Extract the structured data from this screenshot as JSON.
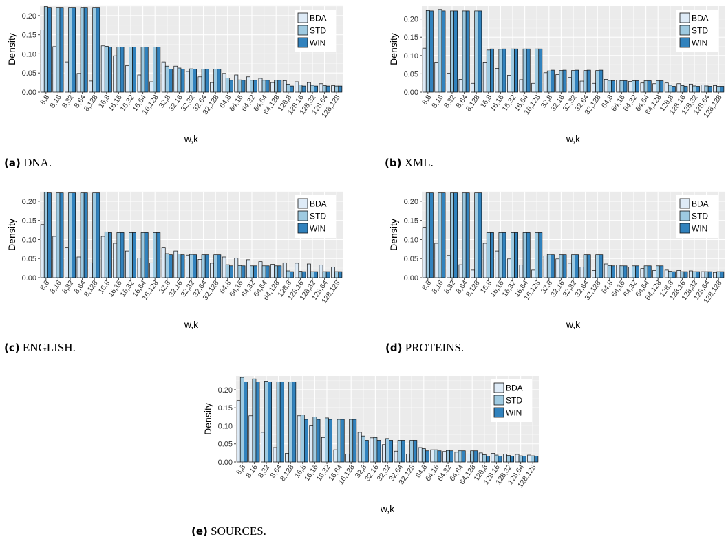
{
  "legend_items": [
    "BDA",
    "STD",
    "WIN"
  ],
  "colors": {
    "BDA": "#deebf7",
    "STD": "#9ecae1",
    "WIN": "#3182bd",
    "panel_bg": "#ebebeb",
    "grid": "#ffffff"
  },
  "chart_data": [
    {
      "type": "bar",
      "caption_label": "(a)",
      "caption_text": "DNA.",
      "xlabel": "w,k",
      "ylabel": "Density",
      "ylim": [
        0,
        0.225
      ],
      "yticks": [
        "0.00",
        "0.05",
        "0.10",
        "0.15",
        "0.20"
      ],
      "categories": [
        "8,8",
        "8,16",
        "8,32",
        "8,64",
        "8,128",
        "16,8",
        "16,16",
        "16,32",
        "16,64",
        "16,128",
        "32,8",
        "32,16",
        "32,32",
        "32,64",
        "32,128",
        "64,8",
        "64,16",
        "64,32",
        "64,64",
        "64,128",
        "128,8",
        "128,16",
        "128,32",
        "128,64",
        "128,128"
      ],
      "series": [
        {
          "name": "BDA",
          "values": [
            0.163,
            0.119,
            0.079,
            0.049,
            0.029,
            0.121,
            0.095,
            0.069,
            0.045,
            0.027,
            0.079,
            0.068,
            0.054,
            0.04,
            0.025,
            0.049,
            0.045,
            0.04,
            0.036,
            0.025,
            0.03,
            0.027,
            0.025,
            0.022,
            0.017
          ]
        },
        {
          "name": "STD",
          "values": [
            0.224,
            0.222,
            0.222,
            0.222,
            0.222,
            0.12,
            0.118,
            0.118,
            0.118,
            0.118,
            0.068,
            0.063,
            0.061,
            0.06,
            0.06,
            0.037,
            0.032,
            0.031,
            0.031,
            0.031,
            0.021,
            0.019,
            0.018,
            0.017,
            0.016
          ]
        },
        {
          "name": "WIN",
          "values": [
            0.222,
            0.222,
            0.222,
            0.222,
            0.222,
            0.118,
            0.118,
            0.118,
            0.118,
            0.118,
            0.06,
            0.06,
            0.06,
            0.06,
            0.06,
            0.031,
            0.031,
            0.031,
            0.031,
            0.031,
            0.016,
            0.016,
            0.016,
            0.016,
            0.016
          ]
        }
      ]
    },
    {
      "type": "bar",
      "caption_label": "(b)",
      "caption_text": "XML.",
      "xlabel": "w,k",
      "ylabel": "Density",
      "ylim": [
        0,
        0.235
      ],
      "yticks": [
        "0.00",
        "0.05",
        "0.10",
        "0.15",
        "0.20"
      ],
      "categories": [
        "8,8",
        "8,16",
        "8,32",
        "8,64",
        "8,128",
        "16,8",
        "16,16",
        "16,32",
        "16,64",
        "16,128",
        "32,8",
        "32,16",
        "32,32",
        "32,64",
        "32,128",
        "64,8",
        "64,16",
        "64,32",
        "64,64",
        "64,128",
        "128,8",
        "128,16",
        "128,32",
        "128,64",
        "128,128"
      ],
      "series": [
        {
          "name": "BDA",
          "values": [
            0.12,
            0.082,
            0.052,
            0.035,
            0.024,
            0.082,
            0.065,
            0.046,
            0.034,
            0.024,
            0.053,
            0.048,
            0.04,
            0.03,
            0.024,
            0.035,
            0.033,
            0.029,
            0.025,
            0.023,
            0.025,
            0.023,
            0.022,
            0.02,
            0.018
          ]
        },
        {
          "name": "STD",
          "values": [
            0.223,
            0.226,
            0.222,
            0.222,
            0.222,
            0.115,
            0.117,
            0.118,
            0.118,
            0.118,
            0.058,
            0.059,
            0.059,
            0.059,
            0.059,
            0.032,
            0.031,
            0.031,
            0.031,
            0.031,
            0.019,
            0.018,
            0.017,
            0.017,
            0.016
          ]
        },
        {
          "name": "WIN",
          "values": [
            0.222,
            0.222,
            0.222,
            0.222,
            0.222,
            0.118,
            0.118,
            0.118,
            0.118,
            0.118,
            0.06,
            0.06,
            0.06,
            0.06,
            0.06,
            0.031,
            0.031,
            0.031,
            0.031,
            0.031,
            0.016,
            0.016,
            0.016,
            0.016,
            0.016
          ]
        }
      ]
    },
    {
      "type": "bar",
      "caption_label": "(c)",
      "caption_text": "ENGLISH.",
      "xlabel": "w,k",
      "ylabel": "Density",
      "ylim": [
        0,
        0.225
      ],
      "yticks": [
        "0.00",
        "0.05",
        "0.10",
        "0.15",
        "0.20"
      ],
      "categories": [
        "8,8",
        "8,16",
        "8,32",
        "8,64",
        "8,128",
        "16,8",
        "16,16",
        "16,32",
        "16,64",
        "16,128",
        "32,8",
        "32,16",
        "32,32",
        "32,64",
        "32,128",
        "64,8",
        "64,16",
        "64,32",
        "64,64",
        "64,128",
        "128,8",
        "128,16",
        "128,32",
        "128,64",
        "128,128"
      ],
      "series": [
        {
          "name": "BDA",
          "values": [
            0.139,
            0.108,
            0.078,
            0.054,
            0.039,
            0.108,
            0.09,
            0.07,
            0.051,
            0.039,
            0.078,
            0.07,
            0.059,
            0.048,
            0.038,
            0.054,
            0.051,
            0.047,
            0.042,
            0.035,
            0.039,
            0.038,
            0.036,
            0.033,
            0.028
          ]
        },
        {
          "name": "STD",
          "values": [
            0.224,
            0.222,
            0.222,
            0.222,
            0.222,
            0.12,
            0.118,
            0.118,
            0.118,
            0.118,
            0.063,
            0.062,
            0.061,
            0.06,
            0.06,
            0.034,
            0.032,
            0.031,
            0.031,
            0.031,
            0.018,
            0.017,
            0.016,
            0.016,
            0.016
          ]
        },
        {
          "name": "WIN",
          "values": [
            0.222,
            0.222,
            0.222,
            0.222,
            0.222,
            0.118,
            0.118,
            0.118,
            0.118,
            0.118,
            0.06,
            0.06,
            0.06,
            0.06,
            0.06,
            0.031,
            0.031,
            0.031,
            0.031,
            0.031,
            0.016,
            0.016,
            0.016,
            0.016,
            0.016
          ]
        }
      ]
    },
    {
      "type": "bar",
      "caption_label": "(d)",
      "caption_text": "PROTEINS.",
      "xlabel": "w,k",
      "ylabel": "Density",
      "ylim": [
        0,
        0.225
      ],
      "yticks": [
        "0.00",
        "0.05",
        "0.10",
        "0.15",
        "0.20"
      ],
      "categories": [
        "8,8",
        "8,16",
        "8,32",
        "8,64",
        "8,128",
        "16,8",
        "16,16",
        "16,32",
        "16,64",
        "16,128",
        "32,8",
        "32,16",
        "32,32",
        "32,64",
        "32,128",
        "64,8",
        "64,16",
        "64,32",
        "64,64",
        "64,128",
        "128,8",
        "128,16",
        "128,32",
        "128,64",
        "128,128"
      ],
      "series": [
        {
          "name": "BDA",
          "values": [
            0.132,
            0.09,
            0.058,
            0.034,
            0.02,
            0.09,
            0.07,
            0.049,
            0.033,
            0.02,
            0.057,
            0.049,
            0.038,
            0.028,
            0.019,
            0.036,
            0.033,
            0.028,
            0.024,
            0.019,
            0.02,
            0.019,
            0.018,
            0.016,
            0.014
          ]
        },
        {
          "name": "STD",
          "values": [
            0.222,
            0.222,
            0.222,
            0.222,
            0.222,
            0.118,
            0.118,
            0.118,
            0.118,
            0.118,
            0.061,
            0.06,
            0.06,
            0.06,
            0.06,
            0.032,
            0.031,
            0.031,
            0.031,
            0.031,
            0.017,
            0.016,
            0.016,
            0.016,
            0.016
          ]
        },
        {
          "name": "WIN",
          "values": [
            0.222,
            0.222,
            0.222,
            0.222,
            0.222,
            0.118,
            0.118,
            0.118,
            0.118,
            0.118,
            0.06,
            0.06,
            0.06,
            0.06,
            0.06,
            0.031,
            0.031,
            0.031,
            0.031,
            0.031,
            0.016,
            0.016,
            0.016,
            0.016,
            0.016
          ]
        }
      ]
    },
    {
      "type": "bar",
      "caption_label": "(e)",
      "caption_text": "SOURCES.",
      "xlabel": "w,k",
      "ylabel": "Density",
      "ylim": [
        0,
        0.238
      ],
      "yticks": [
        "0.00",
        "0.05",
        "0.10",
        "0.15",
        "0.20"
      ],
      "categories": [
        "8,8",
        "8,16",
        "8,32",
        "8,64",
        "8,128",
        "16,8",
        "16,16",
        "16,32",
        "16,64",
        "16,128",
        "32,8",
        "32,16",
        "32,32",
        "32,64",
        "32,128",
        "64,8",
        "64,16",
        "64,32",
        "64,64",
        "64,128",
        "128,8",
        "128,16",
        "128,32",
        "128,64",
        "128,128"
      ],
      "series": [
        {
          "name": "BDA",
          "values": [
            0.17,
            0.128,
            0.082,
            0.04,
            0.024,
            0.128,
            0.102,
            0.068,
            0.034,
            0.022,
            0.082,
            0.067,
            0.048,
            0.03,
            0.022,
            0.04,
            0.034,
            0.029,
            0.027,
            0.022,
            0.025,
            0.024,
            0.022,
            0.021,
            0.019
          ]
        },
        {
          "name": "STD",
          "values": [
            0.234,
            0.23,
            0.224,
            0.222,
            0.222,
            0.13,
            0.125,
            0.122,
            0.118,
            0.118,
            0.072,
            0.068,
            0.065,
            0.06,
            0.06,
            0.037,
            0.034,
            0.032,
            0.031,
            0.031,
            0.02,
            0.019,
            0.018,
            0.017,
            0.017
          ]
        },
        {
          "name": "WIN",
          "values": [
            0.222,
            0.222,
            0.222,
            0.222,
            0.222,
            0.118,
            0.118,
            0.118,
            0.118,
            0.118,
            0.06,
            0.06,
            0.06,
            0.06,
            0.06,
            0.031,
            0.031,
            0.031,
            0.031,
            0.031,
            0.016,
            0.016,
            0.016,
            0.016,
            0.016
          ]
        }
      ]
    }
  ]
}
